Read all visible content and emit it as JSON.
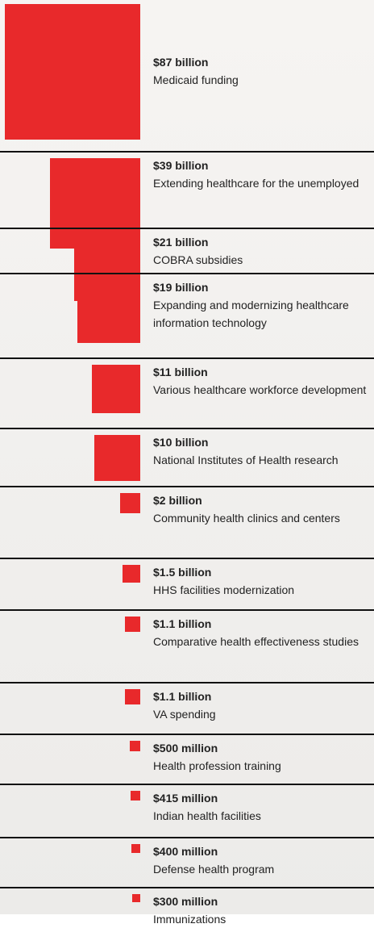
{
  "chart_data": {
    "type": "square",
    "color": "#e8292b",
    "categories": [
      "Medicaid funding",
      "Extending healthcare for the unemployed",
      "COBRA subsidies",
      "Expanding and modernizing healthcare information technology",
      "Various healthcare workforce development",
      "National Institutes of Health research",
      "Community health clinics and centers",
      "HHS facilities modernization",
      "Comparative health effectiveness studies",
      "VA spending",
      "Health profession training",
      "Indian health facilities",
      "Defense health program",
      "Immunizations"
    ],
    "values": [
      87,
      39,
      21,
      19,
      11,
      10,
      2,
      1.5,
      1.1,
      1.1,
      0.5,
      0.415,
      0.4,
      0.3
    ],
    "value_labels": [
      "$87 billion",
      "$39 billion",
      "$21 billion",
      "$19 billion",
      "$11 billion",
      "$10 billion",
      "$2 billion",
      "$1.5 billion",
      "$1.1 billion",
      "$1.1 billion",
      "$500 million",
      "$415 million",
      "$400 million",
      "$300 million"
    ]
  }
}
